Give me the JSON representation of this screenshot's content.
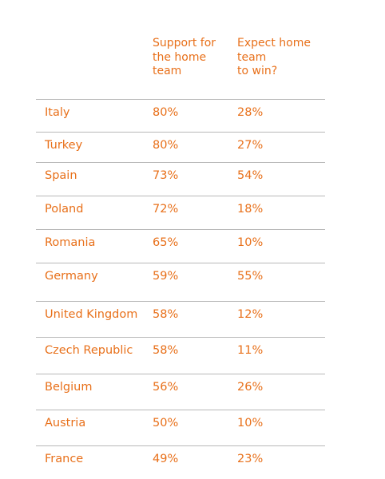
{
  "header": {
    "support_lines": [
      "Support for",
      "the home",
      "team"
    ],
    "expect_lines": [
      "Expect home",
      "team",
      "to win?"
    ]
  },
  "chart_data": {
    "type": "table",
    "columns": [
      "",
      "Support for the home team",
      "Expect home team to win?"
    ],
    "rows": [
      {
        "country": "Italy",
        "support": "80%",
        "expect": "28%"
      },
      {
        "country": "Turkey",
        "support": "80%",
        "expect": "27%"
      },
      {
        "country": "Spain",
        "support": "73%",
        "expect": "54%"
      },
      {
        "country": "Poland",
        "support": "72%",
        "expect": "18%"
      },
      {
        "country": "Romania",
        "support": "65%",
        "expect": "10%"
      },
      {
        "country": "Germany",
        "support": "59%",
        "expect": "55%"
      },
      {
        "country": "United Kingdom",
        "support": "58%",
        "expect": "12%"
      },
      {
        "country": "Czech Republic",
        "support": "58%",
        "expect": "11%"
      },
      {
        "country": "Belgium",
        "support": "56%",
        "expect": "26%"
      },
      {
        "country": "Austria",
        "support": "50%",
        "expect": "10%"
      },
      {
        "country": "France",
        "support": "49%",
        "expect": "23%"
      }
    ]
  },
  "colors": {
    "text": "#e8701a",
    "rule": "#b8b8b8"
  }
}
